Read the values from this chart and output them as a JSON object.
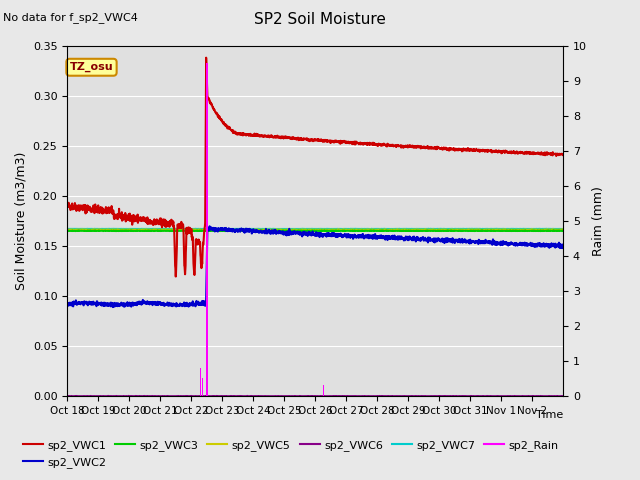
{
  "title": "SP2 Soil Moisture",
  "no_data_text": "No data for f_sp2_VWC4",
  "ylabel_left": "Soil Moisture (m3/m3)",
  "ylabel_right": "Raim (mm)",
  "xlabel": "Time",
  "ylim_left": [
    0.0,
    0.35
  ],
  "ylim_right": [
    0.0,
    10.0
  ],
  "fig_facecolor": "#e8e8e8",
  "plot_facecolor": "#e0e0e0",
  "tz_label": "TZ_osu",
  "tz_bg": "#ffff99",
  "tz_border": "#cc8800",
  "x_tick_labels": [
    "Oct 18",
    "Oct 19",
    "Oct 20",
    "Oct 21",
    "Oct 22",
    "Oct 23",
    "Oct 24",
    "Oct 25",
    "Oct 26",
    "Oct 27",
    "Oct 28",
    "Oct 29",
    "Oct 30",
    "Oct 31",
    "Nov 1",
    "Nov 2"
  ],
  "series_colors": {
    "sp2_VWC1": "#cc0000",
    "sp2_VWC2": "#0000cc",
    "sp2_VWC3": "#00cc00",
    "sp2_VWC5": "#cccc00",
    "sp2_VWC6": "#880088",
    "sp2_VWC7": "#00cccc",
    "sp2_Rain": "#ff00ff"
  }
}
